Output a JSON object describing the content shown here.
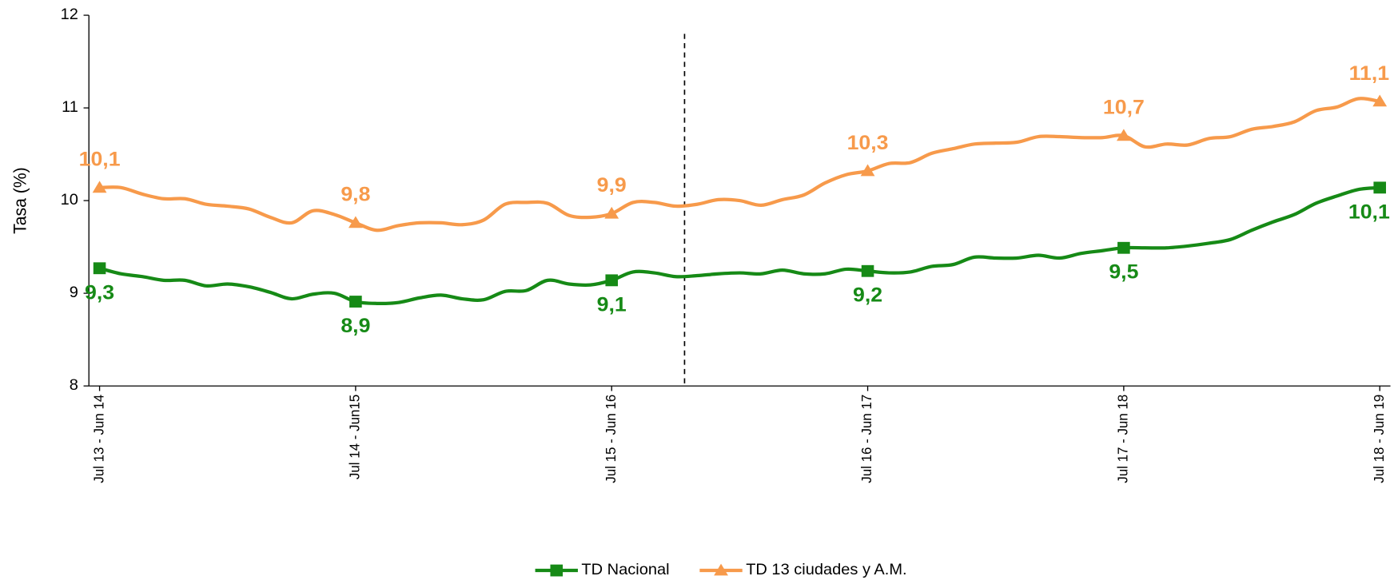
{
  "chart_data": {
    "type": "line",
    "y_label": "Tasa (%)",
    "categories": [
      "Jul 13 - Jun 14",
      null,
      null,
      null,
      null,
      null,
      null,
      null,
      null,
      null,
      null,
      null,
      "Jul 14 - Jun15",
      null,
      null,
      null,
      null,
      null,
      null,
      null,
      null,
      null,
      null,
      null,
      "Jul 15 - Jun 16",
      null,
      null,
      null,
      null,
      null,
      null,
      null,
      null,
      null,
      null,
      null,
      "Jul 16 - Jun 17",
      null,
      null,
      null,
      null,
      null,
      null,
      null,
      null,
      null,
      null,
      null,
      "Jul 17 - Jun 18",
      null,
      null,
      null,
      null,
      null,
      null,
      null,
      null,
      null,
      null,
      null,
      "Jul 18 - Jun 19"
    ],
    "ylim": [
      8,
      12
    ],
    "yticks": [
      8,
      9,
      10,
      11,
      12
    ],
    "grid": false,
    "legend": "bottom",
    "series": [
      {
        "name": "TD Nacional",
        "color": "#168a16",
        "marker": "square",
        "label_position": "below",
        "values": [
          9.27,
          9.21,
          9.18,
          9.14,
          9.14,
          9.08,
          9.1,
          9.07,
          9.01,
          8.94,
          8.99,
          9.0,
          8.91,
          8.89,
          8.9,
          8.95,
          8.98,
          8.94,
          8.93,
          9.02,
          9.03,
          9.14,
          9.1,
          9.09,
          9.14,
          9.23,
          9.22,
          9.18,
          9.19,
          9.21,
          9.22,
          9.21,
          9.25,
          9.21,
          9.21,
          9.26,
          9.24,
          9.22,
          9.23,
          9.29,
          9.31,
          9.39,
          9.38,
          9.38,
          9.41,
          9.38,
          9.43,
          9.46,
          9.49,
          9.49,
          9.49,
          9.51,
          9.54,
          9.58,
          9.68,
          9.77,
          9.85,
          9.97,
          10.05,
          10.12,
          10.14
        ],
        "value_labels": [
          "9,3",
          null,
          null,
          null,
          null,
          null,
          null,
          null,
          null,
          null,
          null,
          null,
          "8,9",
          null,
          null,
          null,
          null,
          null,
          null,
          null,
          null,
          null,
          null,
          null,
          "9,1",
          null,
          null,
          null,
          null,
          null,
          null,
          null,
          null,
          null,
          null,
          null,
          "9,2",
          null,
          null,
          null,
          null,
          null,
          null,
          null,
          null,
          null,
          null,
          null,
          "9,5",
          null,
          null,
          null,
          null,
          null,
          null,
          null,
          null,
          null,
          null,
          null,
          "10,1"
        ]
      },
      {
        "name": "TD 13 ciudades y A.M.",
        "color": "#f79a4b",
        "marker": "triangle",
        "label_position": "above",
        "values": [
          10.14,
          10.14,
          10.07,
          10.02,
          10.02,
          9.96,
          9.94,
          9.91,
          9.82,
          9.76,
          9.89,
          9.85,
          9.76,
          9.68,
          9.73,
          9.76,
          9.76,
          9.74,
          9.79,
          9.96,
          9.98,
          9.97,
          9.84,
          9.82,
          9.86,
          9.98,
          9.98,
          9.94,
          9.96,
          10.01,
          10.0,
          9.95,
          10.01,
          10.06,
          10.19,
          10.28,
          10.32,
          10.4,
          10.41,
          10.51,
          10.56,
          10.61,
          10.62,
          10.63,
          10.69,
          10.69,
          10.68,
          10.68,
          10.7,
          10.58,
          10.61,
          10.6,
          10.67,
          10.69,
          10.77,
          10.8,
          10.85,
          10.97,
          11.01,
          11.1,
          11.07
        ],
        "value_labels": [
          "10,1",
          null,
          null,
          null,
          null,
          null,
          null,
          null,
          null,
          null,
          null,
          null,
          "9,8",
          null,
          null,
          null,
          null,
          null,
          null,
          null,
          null,
          null,
          null,
          null,
          "9,9",
          null,
          null,
          null,
          null,
          null,
          null,
          null,
          null,
          null,
          null,
          null,
          "10,3",
          null,
          null,
          null,
          null,
          null,
          null,
          null,
          null,
          null,
          null,
          null,
          "10,7",
          null,
          null,
          null,
          null,
          null,
          null,
          null,
          null,
          null,
          null,
          null,
          "11,1"
        ]
      }
    ]
  }
}
